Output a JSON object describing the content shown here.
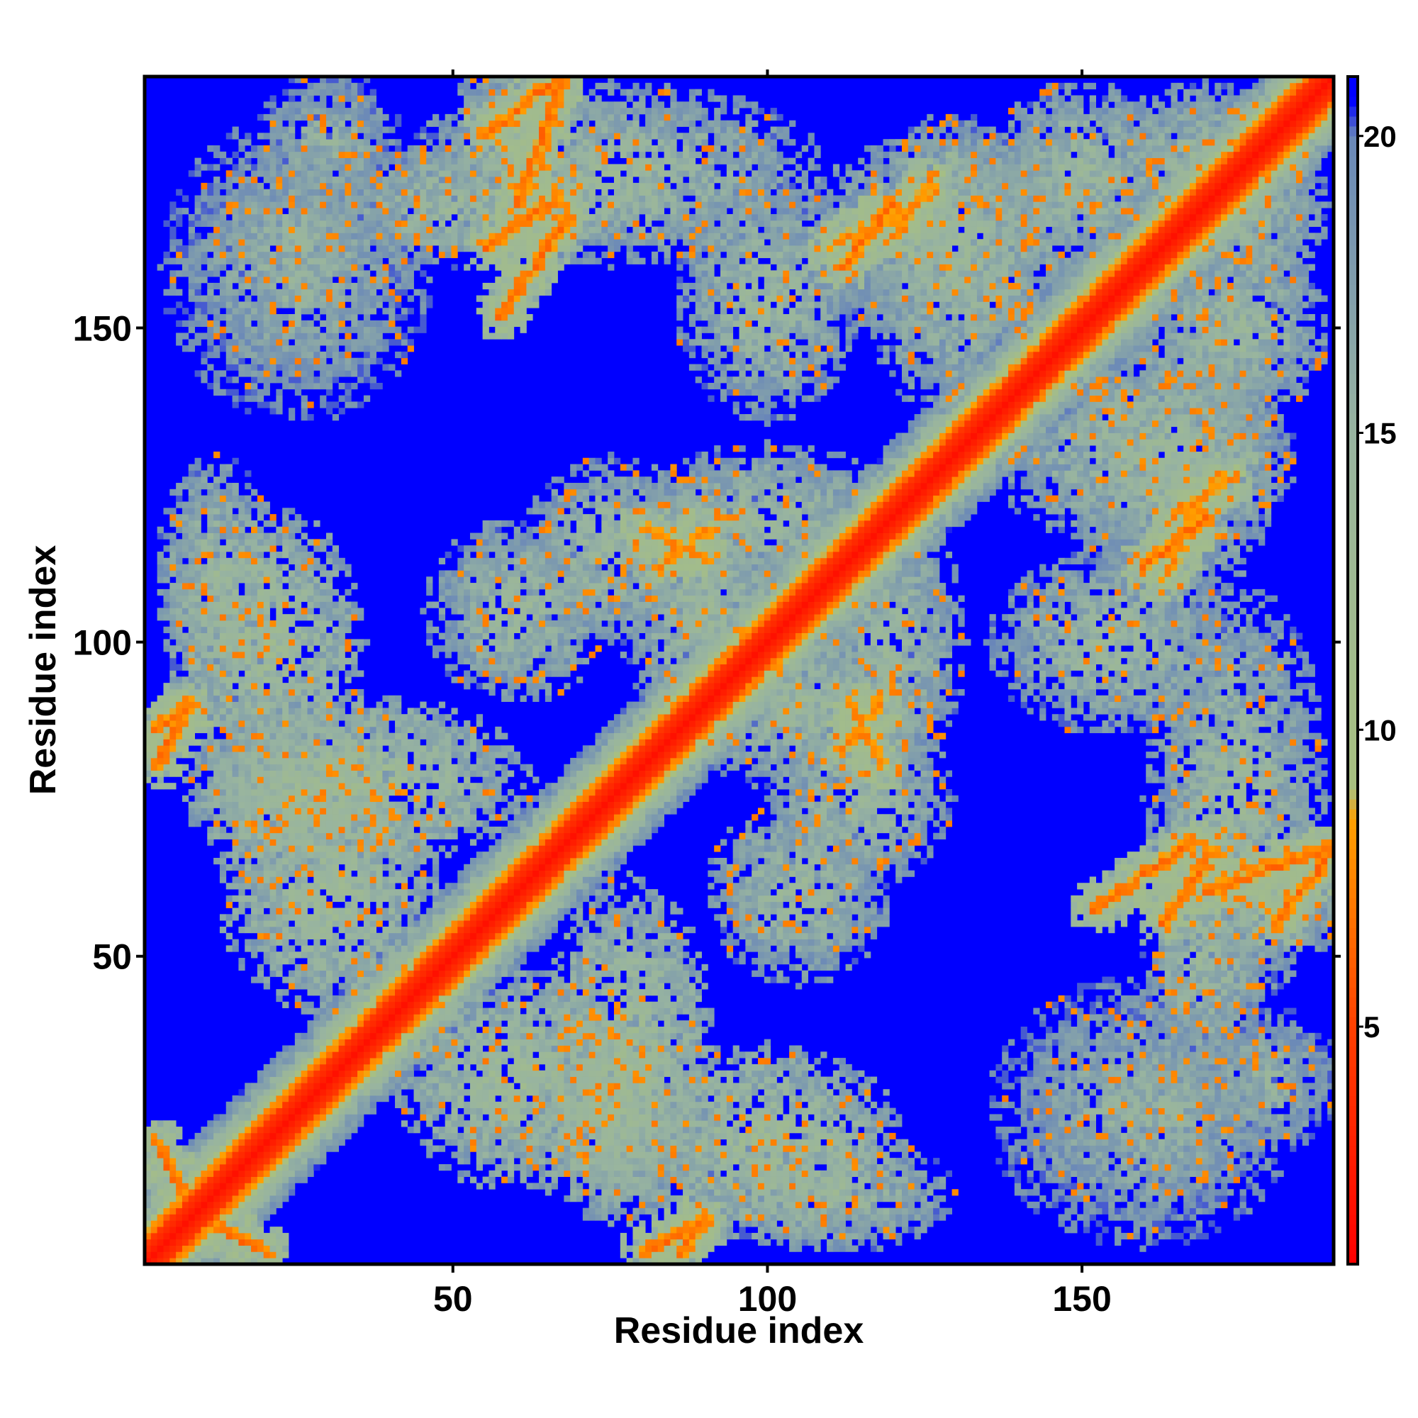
{
  "chart_data": {
    "type": "heatmap",
    "title": "",
    "xlabel": "Residue index",
    "ylabel": "Residue index",
    "n_residues": 190,
    "xlim": [
      1,
      190
    ],
    "ylim": [
      1,
      190
    ],
    "x_ticks": [
      50,
      100,
      150
    ],
    "y_ticks": [
      50,
      100,
      150
    ],
    "colorbar": {
      "min": 1,
      "max": 21,
      "ticks": [
        5,
        10,
        15,
        20
      ],
      "stops": [
        {
          "value": 1,
          "color": "#ff0000"
        },
        {
          "value": 5,
          "color": "#ff4000"
        },
        {
          "value": 8.5,
          "color": "#ffa000"
        },
        {
          "value": 9,
          "color": "#a8c080"
        },
        {
          "value": 15,
          "color": "#98b4a0"
        },
        {
          "value": 20,
          "color": "#6a88b8"
        },
        {
          "value": 20.6,
          "color": "#0000ff"
        },
        {
          "value": 21,
          "color": "#0000ff"
        }
      ]
    },
    "background_value": 21,
    "diagonal": {
      "band_width": 3,
      "value": 2
    },
    "contact_segments": [
      {
        "from": [
          8,
          8
        ],
        "to": [
          20,
          2
        ],
        "value": 6
      },
      {
        "from": [
          2,
          86
        ],
        "to": [
          8,
          90
        ],
        "value": 6
      },
      {
        "from": [
          55,
          181
        ],
        "to": [
          66,
          190
        ],
        "value": 6
      },
      {
        "from": [
          55,
          163
        ],
        "to": [
          66,
          171
        ],
        "value": 6
      },
      {
        "from": [
          80,
          118
        ],
        "to": [
          90,
          113
        ],
        "value": 7
      },
      {
        "from": [
          110,
          163
        ],
        "to": [
          125,
          171
        ],
        "value": 7
      },
      {
        "from": [
          112,
          83
        ],
        "to": [
          118,
          91
        ],
        "value": 7
      },
      {
        "from": [
          152,
          57
        ],
        "to": [
          168,
          68
        ],
        "value": 6
      },
      {
        "from": [
          170,
          60
        ],
        "to": [
          190,
          67
        ],
        "value": 6
      },
      {
        "from": [
          160,
          112
        ],
        "to": [
          170,
          120
        ],
        "value": 6
      },
      {
        "from": [
          165,
          120
        ],
        "to": [
          175,
          127
        ],
        "value": 7
      },
      {
        "from": [
          80,
          2
        ],
        "to": [
          90,
          7
        ],
        "value": 6
      }
    ],
    "contact_blobs": [
      {
        "center": [
          20,
          100
        ],
        "radius": [
          16,
          22
        ],
        "value": 13
      },
      {
        "center": [
          35,
          78
        ],
        "radius": [
          28,
          14
        ],
        "value": 13
      },
      {
        "center": [
          60,
          30
        ],
        "radius": [
          20,
          18
        ],
        "value": 13
      },
      {
        "center": [
          75,
          25
        ],
        "radius": [
          15,
          18
        ],
        "value": 13
      },
      {
        "center": [
          110,
          12
        ],
        "radius": [
          20,
          10
        ],
        "value": 14
      },
      {
        "center": [
          75,
          175
        ],
        "radius": [
          35,
          15
        ],
        "value": 14
      },
      {
        "center": [
          100,
          120
        ],
        "radius": [
          22,
          12
        ],
        "value": 14
      },
      {
        "center": [
          105,
          90
        ],
        "radius": [
          22,
          14
        ],
        "value": 14
      },
      {
        "center": [
          115,
          75
        ],
        "radius": [
          15,
          15
        ],
        "value": 14
      },
      {
        "center": [
          130,
          165
        ],
        "radius": [
          25,
          18
        ],
        "value": 14
      },
      {
        "center": [
          155,
          100
        ],
        "radius": [
          20,
          15
        ],
        "value": 14
      },
      {
        "center": [
          160,
          130
        ],
        "radius": [
          25,
          15
        ],
        "value": 14
      },
      {
        "center": [
          160,
          25
        ],
        "radius": [
          25,
          22
        ],
        "value": 15
      },
      {
        "center": [
          175,
          150
        ],
        "radius": [
          15,
          15
        ],
        "value": 14
      },
      {
        "center": [
          180,
          60
        ],
        "radius": [
          15,
          12
        ],
        "value": 14
      },
      {
        "center": [
          60,
          105
        ],
        "radius": [
          15,
          15
        ],
        "value": 14
      },
      {
        "center": [
          50,
          170
        ],
        "radius": [
          20,
          10
        ],
        "value": 14
      },
      {
        "center": [
          25,
          165
        ],
        "radius": [
          15,
          8
        ],
        "value": 15
      },
      {
        "center": [
          170,
          175
        ],
        "radius": [
          18,
          15
        ],
        "value": 14
      },
      {
        "center": [
          180,
          30
        ],
        "radius": [
          12,
          12
        ],
        "value": 15
      }
    ]
  }
}
